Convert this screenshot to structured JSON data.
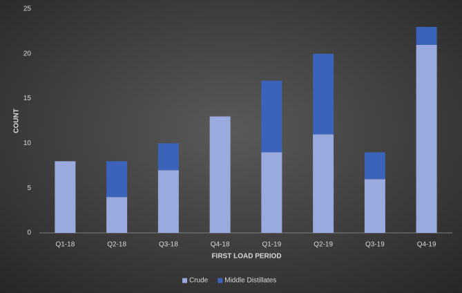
{
  "chart_data": {
    "type": "stacked-bar",
    "x_label": "FIRST LOAD PERIOD",
    "y_label": "COUNT",
    "categories": [
      "Q1-18",
      "Q2-18",
      "Q3-18",
      "Q4-18",
      "Q1-19",
      "Q2-19",
      "Q3-19",
      "Q4-19"
    ],
    "series": [
      {
        "name": "Crude",
        "color": "#9aaade",
        "values": [
          8,
          4,
          7,
          13,
          9,
          11,
          6,
          21
        ]
      },
      {
        "name": "Middle Distillates",
        "color": "#3b63b9",
        "values": [
          0,
          4,
          3,
          0,
          8,
          9,
          3,
          2
        ]
      }
    ],
    "ylim": [
      0,
      25
    ],
    "yticks": [
      0,
      5,
      10,
      15,
      20,
      25
    ],
    "grid": false,
    "legend": "bottom"
  }
}
